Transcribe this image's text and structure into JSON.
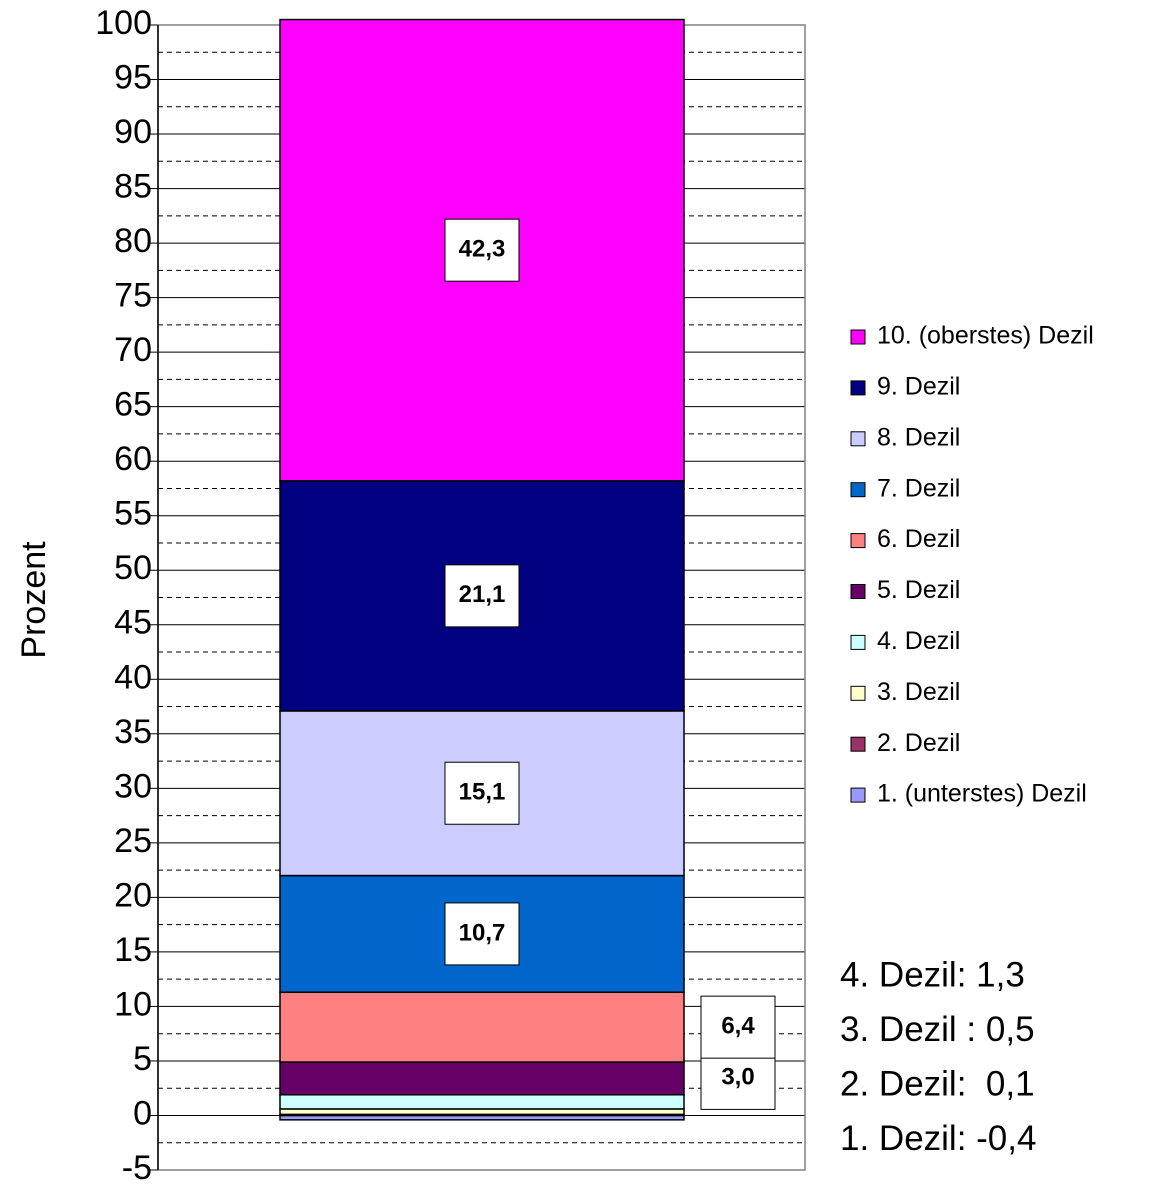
{
  "chart_data": {
    "type": "stacked_bar",
    "y_label": "Prozent",
    "categories": [
      null
    ],
    "ylim": [
      -5,
      100
    ],
    "yticks": [
      -5,
      0,
      5,
      10,
      15,
      20,
      25,
      30,
      35,
      40,
      45,
      50,
      55,
      60,
      65,
      70,
      75,
      80,
      85,
      90,
      95,
      100
    ],
    "yminor_ticks": [
      -2.5,
      2.5,
      7.5,
      12.5,
      17.5,
      22.5,
      27.5,
      32.5,
      37.5,
      42.5,
      47.5,
      52.5,
      57.5,
      62.5,
      67.5,
      72.5,
      77.5,
      82.5,
      87.5,
      92.5,
      97.5
    ],
    "grid": true,
    "legend": "right",
    "series": [
      {
        "name": "1. (unterstes) Dezil",
        "color": "#9999ff",
        "values": [
          -0.4
        ]
      },
      {
        "name": "2. Dezil",
        "color": "#993366",
        "values": [
          0.1
        ]
      },
      {
        "name": "3. Dezil",
        "color": "#ffffcc",
        "values": [
          0.5
        ]
      },
      {
        "name": "4. Dezil",
        "color": "#ccffff",
        "values": [
          1.3
        ]
      },
      {
        "name": "5. Dezil",
        "color": "#660066",
        "values": [
          3.0
        ],
        "value_labels": [
          "3,0"
        ]
      },
      {
        "name": "6. Dezil",
        "color": "#ff8080",
        "values": [
          6.4
        ],
        "value_labels": [
          "6,4"
        ]
      },
      {
        "name": "7. Dezil",
        "color": "#0066cc",
        "values": [
          10.7
        ],
        "value_labels": [
          "10,7"
        ]
      },
      {
        "name": "8. Dezil",
        "color": "#ccccff",
        "values": [
          15.1
        ],
        "value_labels": [
          "15,1"
        ]
      },
      {
        "name": "9. Dezil",
        "color": "#000080",
        "values": [
          21.1
        ],
        "value_labels": [
          "21,1"
        ]
      },
      {
        "name": "10. (oberstes) Dezil",
        "color": "#ff00ff",
        "values": [
          42.3
        ],
        "value_labels": [
          "42,3"
        ]
      }
    ],
    "annotations": [
      "4. Dezil: 1,3",
      "3. Dezil : 0,5",
      "2. Dezil:  0,1",
      "1. Dezil: -0,4"
    ]
  }
}
